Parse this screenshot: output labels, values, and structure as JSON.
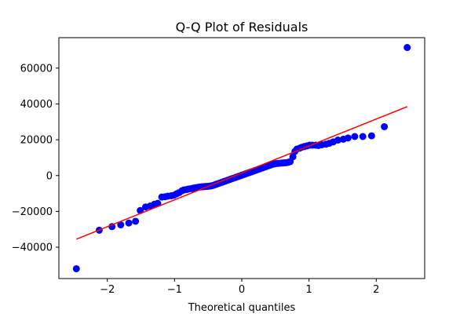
{
  "chart_data": {
    "type": "scatter",
    "title": "Q-Q Plot of Residuals",
    "xlabel": "Theoretical quantiles",
    "ylabel": "",
    "xlim": [
      -2.72,
      2.72
    ],
    "ylim": [
      -57500,
      77000
    ],
    "x_ticks": [
      -2,
      -1,
      0,
      1,
      2
    ],
    "x_tick_labels": [
      "−2",
      "−1",
      "0",
      "1",
      "2"
    ],
    "y_ticks": [
      -40000,
      -20000,
      0,
      20000,
      40000,
      60000
    ],
    "y_tick_labels": [
      "−40000",
      "−20000",
      "0",
      "20000",
      "40000",
      "60000"
    ],
    "grid": false,
    "series": [
      {
        "kind": "points",
        "color": "#0000ff",
        "points": [
          [
            -2.46,
            -52000
          ],
          [
            -2.12,
            -30500
          ],
          [
            -1.93,
            -28500
          ],
          [
            -1.8,
            -27500
          ],
          [
            -1.68,
            -26500
          ],
          [
            -1.58,
            -25500
          ],
          [
            -1.51,
            -19500
          ],
          [
            -1.43,
            -17500
          ],
          [
            -1.36,
            -17000
          ],
          [
            -1.3,
            -16000
          ],
          [
            -1.25,
            -15500
          ],
          [
            -1.19,
            -12000
          ],
          [
            -1.14,
            -11800
          ],
          [
            -1.1,
            -11500
          ],
          [
            -1.05,
            -11300
          ],
          [
            -1.01,
            -11000
          ],
          [
            -0.97,
            -10200
          ],
          [
            -0.93,
            -9500
          ],
          [
            -0.89,
            -8500
          ],
          [
            -0.86,
            -8000
          ],
          [
            -0.82,
            -7800
          ],
          [
            -0.79,
            -7500
          ],
          [
            -0.75,
            -7300
          ],
          [
            -0.72,
            -7000
          ],
          [
            -0.69,
            -6800
          ],
          [
            -0.66,
            -6600
          ],
          [
            -0.63,
            -6400
          ],
          [
            -0.6,
            -6300
          ],
          [
            -0.57,
            -6200
          ],
          [
            -0.54,
            -6100
          ],
          [
            -0.51,
            -6000
          ],
          [
            -0.48,
            -5900
          ],
          [
            -0.45,
            -5700
          ],
          [
            -0.42,
            -5400
          ],
          [
            -0.39,
            -5000
          ],
          [
            -0.36,
            -4600
          ],
          [
            -0.33,
            -4200
          ],
          [
            -0.3,
            -3800
          ],
          [
            -0.27,
            -3400
          ],
          [
            -0.24,
            -3000
          ],
          [
            -0.21,
            -2600
          ],
          [
            -0.18,
            -2200
          ],
          [
            -0.15,
            -1800
          ],
          [
            -0.12,
            -1400
          ],
          [
            -0.09,
            -1000
          ],
          [
            -0.06,
            -600
          ],
          [
            -0.03,
            -200
          ],
          [
            0.0,
            200
          ],
          [
            0.03,
            600
          ],
          [
            0.06,
            1000
          ],
          [
            0.09,
            1400
          ],
          [
            0.12,
            1800
          ],
          [
            0.15,
            2200
          ],
          [
            0.18,
            2600
          ],
          [
            0.21,
            3000
          ],
          [
            0.24,
            3400
          ],
          [
            0.27,
            3800
          ],
          [
            0.3,
            4200
          ],
          [
            0.33,
            4600
          ],
          [
            0.36,
            5000
          ],
          [
            0.39,
            5400
          ],
          [
            0.42,
            5800
          ],
          [
            0.45,
            6200
          ],
          [
            0.48,
            6500
          ],
          [
            0.51,
            6700
          ],
          [
            0.54,
            6800
          ],
          [
            0.57,
            6900
          ],
          [
            0.6,
            7000
          ],
          [
            0.63,
            7100
          ],
          [
            0.66,
            7200
          ],
          [
            0.69,
            7400
          ],
          [
            0.72,
            7800
          ],
          [
            0.76,
            10500
          ],
          [
            0.79,
            13500
          ],
          [
            0.82,
            14800
          ],
          [
            0.86,
            15300
          ],
          [
            0.89,
            15800
          ],
          [
            0.93,
            16200
          ],
          [
            0.97,
            16600
          ],
          [
            1.01,
            17000
          ],
          [
            1.05,
            17000
          ],
          [
            1.1,
            17000
          ],
          [
            1.14,
            16800
          ],
          [
            1.19,
            17200
          ],
          [
            1.25,
            17500
          ],
          [
            1.3,
            18000
          ],
          [
            1.36,
            18800
          ],
          [
            1.43,
            19800
          ],
          [
            1.51,
            20300
          ],
          [
            1.58,
            21000
          ],
          [
            1.68,
            21800
          ],
          [
            1.8,
            21800
          ],
          [
            1.93,
            22200
          ],
          [
            2.12,
            27300
          ],
          [
            2.46,
            71500
          ]
        ]
      },
      {
        "kind": "line",
        "color": "#ff0000",
        "points": [
          [
            -2.46,
            -35500
          ],
          [
            2.46,
            38500
          ]
        ]
      }
    ]
  }
}
